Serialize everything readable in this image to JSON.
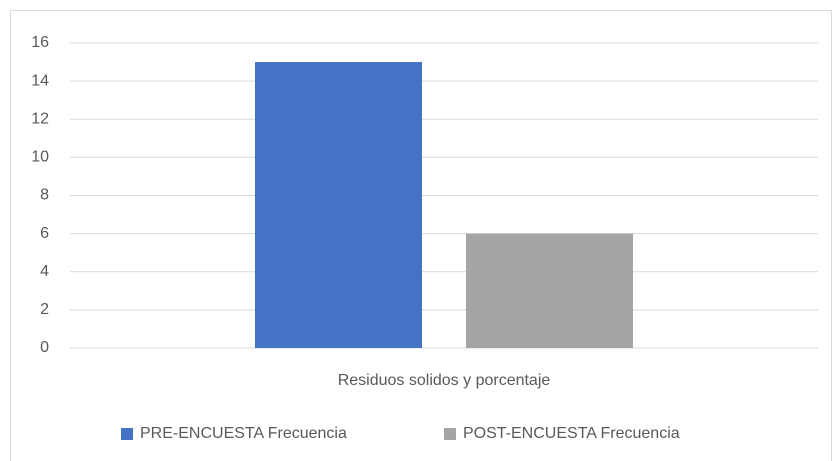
{
  "chart_data": {
    "type": "bar",
    "categories": [
      "Residuos solidos y porcentaje"
    ],
    "series": [
      {
        "name": "PRE-ENCUESTA Frecuencia",
        "color": "#4472c4",
        "values": [
          15
        ]
      },
      {
        "name": "POST-ENCUESTA Frecuencia",
        "color": "#a5a5a5",
        "values": [
          6
        ]
      }
    ],
    "ylim": [
      0,
      16
    ],
    "yticks": [
      0,
      2,
      4,
      6,
      8,
      10,
      12,
      14,
      16
    ],
    "grid": true,
    "legend": "bottom"
  }
}
